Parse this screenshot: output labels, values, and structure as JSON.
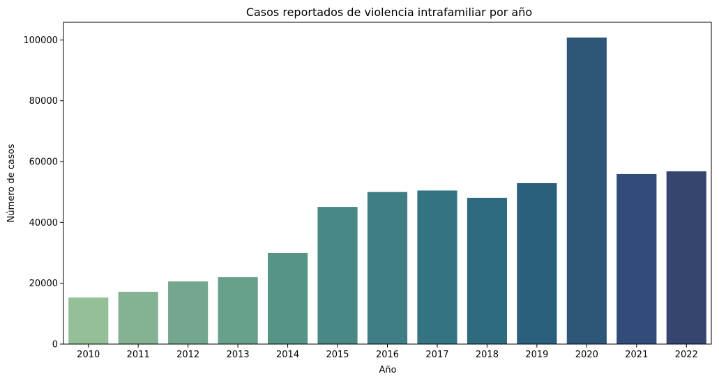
{
  "chart_data": {
    "type": "bar",
    "title": "Casos reportados de violencia intrafamiliar por año",
    "xlabel": "Año",
    "ylabel": "Número de casos",
    "categories": [
      "2010",
      "2011",
      "2012",
      "2013",
      "2014",
      "2015",
      "2016",
      "2017",
      "2018",
      "2019",
      "2020",
      "2021",
      "2022"
    ],
    "values": [
      15300,
      17200,
      20600,
      22000,
      30000,
      45100,
      50000,
      50500,
      48100,
      52900,
      100800,
      55900,
      56800
    ],
    "ylim": [
      0,
      105800
    ],
    "yticks": [
      0,
      20000,
      40000,
      60000,
      80000,
      100000
    ],
    "yticklabels": [
      "0",
      "20000",
      "40000",
      "60000",
      "80000",
      "100000"
    ],
    "grid": false,
    "legend": "none",
    "colors": [
      "#95bf97",
      "#84b293",
      "#73a78f",
      "#67a08b",
      "#559486",
      "#4a8885",
      "#3e7e84",
      "#347482",
      "#2e6a7d",
      "#2a5f7e",
      "#2d5678",
      "#314c79",
      "#354570"
    ]
  }
}
